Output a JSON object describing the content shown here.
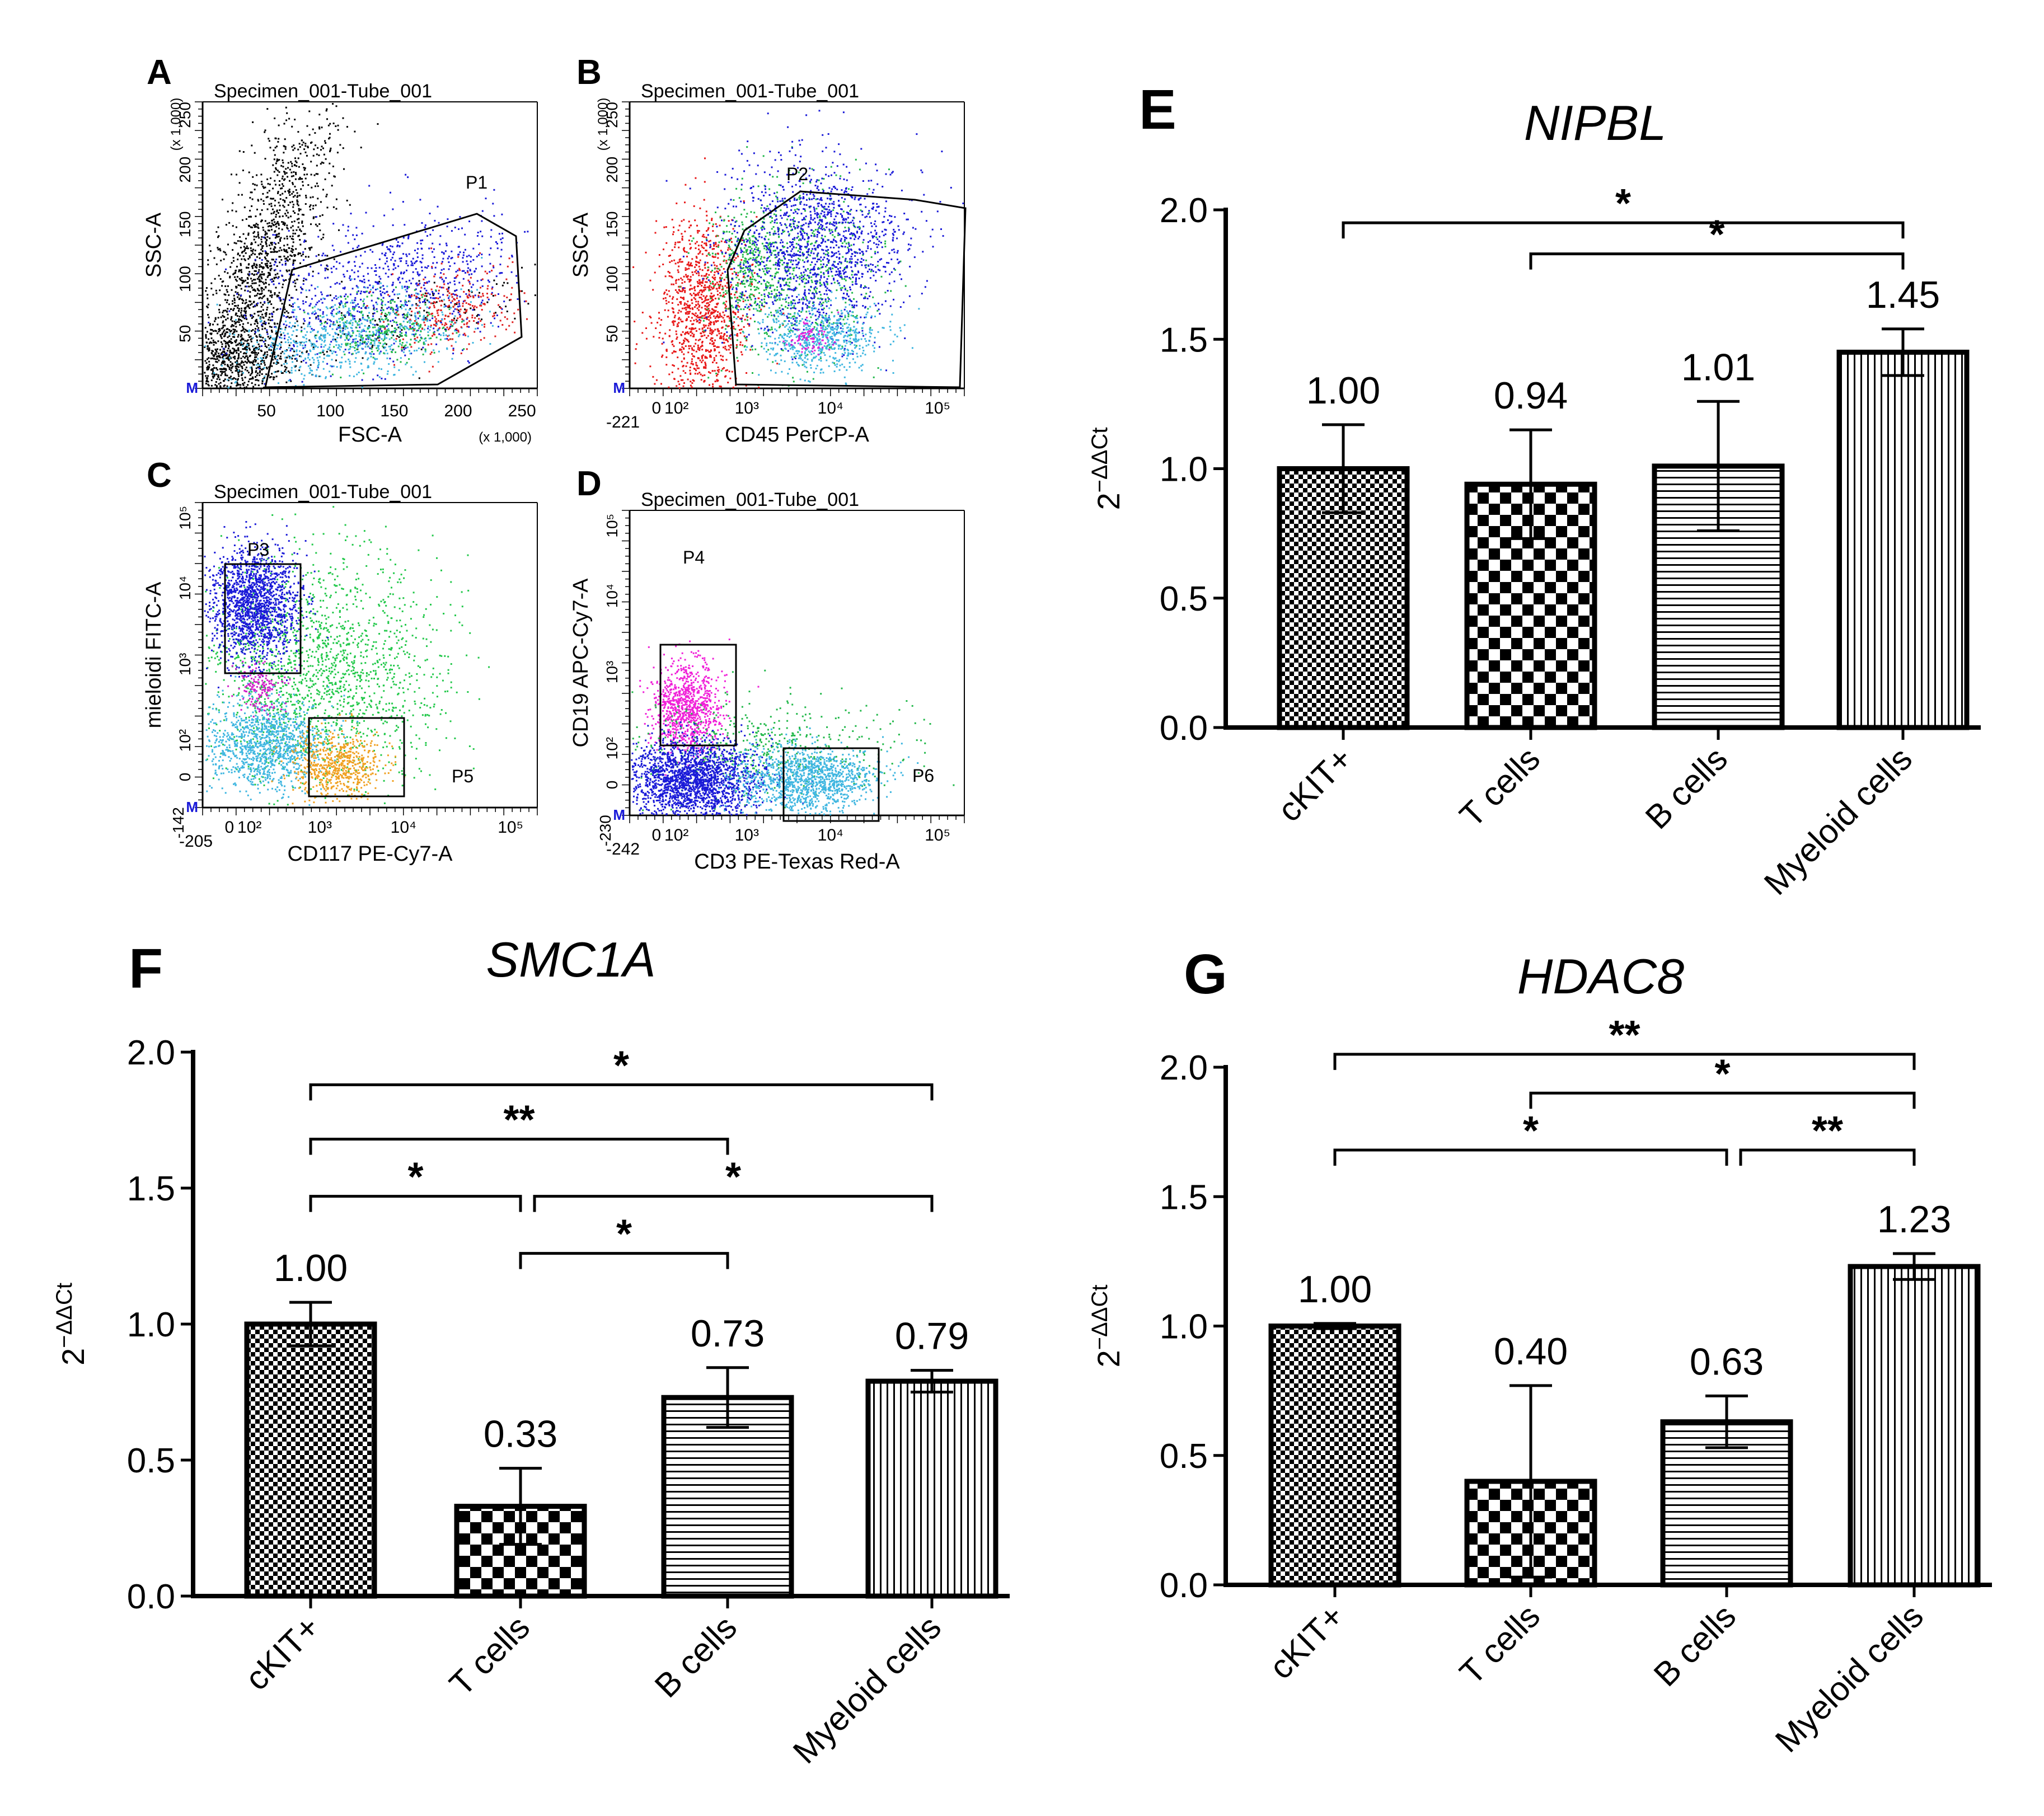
{
  "figure": {
    "panel_labels": [
      "A",
      "B",
      "C",
      "D",
      "E",
      "F",
      "G"
    ]
  },
  "chart_data": [
    {
      "panel": "A",
      "type": "scatter",
      "title": "Specimen_001-Tube_001",
      "xlabel": "FSC-A",
      "ylabel": "SSC-A",
      "x_multiplier": "(x 1,000)",
      "y_multiplier": "(x 1,000)",
      "xlim": [
        0,
        262
      ],
      "ylim": [
        0,
        262
      ],
      "x_ticks": [
        50,
        100,
        150,
        200,
        250
      ],
      "y_ticks": [
        50,
        100,
        150,
        200,
        250
      ],
      "gates": [
        {
          "name": "P1",
          "shape": "polygon"
        }
      ],
      "populations": [
        {
          "name": "debris",
          "color": "#000000"
        },
        {
          "name": "blue",
          "color": "#1a1ad8"
        },
        {
          "name": "cyan",
          "color": "#3fb6e0"
        },
        {
          "name": "green",
          "color": "#22b84a"
        },
        {
          "name": "red",
          "color": "#e02020"
        }
      ]
    },
    {
      "panel": "B",
      "type": "scatter",
      "title": "Specimen_001-Tube_001",
      "xlabel": "CD45 PerCP-A",
      "ylabel": "SSC-A",
      "y_multiplier": "(x 1,000)",
      "x_ticks_text": [
        "-221",
        "0",
        "10²",
        "10³",
        "10⁴",
        "10⁵"
      ],
      "y_ticks": [
        50,
        100,
        150,
        200,
        250
      ],
      "gates": [
        {
          "name": "P2",
          "shape": "polygon"
        }
      ],
      "populations": [
        {
          "name": "red",
          "color": "#e81818"
        },
        {
          "name": "green",
          "color": "#22b84a"
        },
        {
          "name": "blue",
          "color": "#1a1ad8"
        },
        {
          "name": "cyan",
          "color": "#3fb6e0"
        },
        {
          "name": "magenta",
          "color": "#e020d8"
        }
      ]
    },
    {
      "panel": "C",
      "type": "scatter",
      "title": "Specimen_001-Tube_001",
      "xlabel": "CD117 PE-Cy7-A",
      "ylabel": "mieloidi FITC-A",
      "x_ticks_text": [
        "-205",
        "0",
        "10²",
        "10³",
        "10⁴",
        "10⁵"
      ],
      "y_ticks_text": [
        "-142",
        "0",
        "10²",
        "10³",
        "10⁴",
        "10⁵"
      ],
      "gates": [
        {
          "name": "P3",
          "shape": "rect"
        },
        {
          "name": "P5",
          "shape": "rect"
        }
      ],
      "populations": [
        {
          "name": "blue",
          "color": "#1a1ad8"
        },
        {
          "name": "green",
          "color": "#22c84a"
        },
        {
          "name": "cyan",
          "color": "#3fb6e0"
        },
        {
          "name": "orange",
          "color": "#f0a020"
        },
        {
          "name": "magenta",
          "color": "#d020c8"
        }
      ]
    },
    {
      "panel": "D",
      "type": "scatter",
      "title": "Specimen_001-Tube_001",
      "xlabel": "CD3 PE-Texas Red-A",
      "ylabel": "CD19 APC-Cy7-A",
      "x_ticks_text": [
        "-242",
        "0",
        "10²",
        "10³",
        "10⁴",
        "10⁵"
      ],
      "y_ticks_text": [
        "-230",
        "0",
        "10²",
        "10³",
        "10⁴",
        "10⁵"
      ],
      "gates": [
        {
          "name": "P4",
          "shape": "rect"
        },
        {
          "name": "P6",
          "shape": "rect"
        }
      ],
      "populations": [
        {
          "name": "magenta",
          "color": "#f020d8"
        },
        {
          "name": "blue",
          "color": "#1a1ad8"
        },
        {
          "name": "cyan",
          "color": "#3fb6e0"
        },
        {
          "name": "green",
          "color": "#22b84a"
        }
      ]
    },
    {
      "panel": "E",
      "type": "bar",
      "title": "NIPBL",
      "ylabel": "2^-ΔΔCt",
      "ylabel_base": "2",
      "ylabel_exp": "−ΔΔCt",
      "ylim": [
        0,
        2.0
      ],
      "y_ticks": [
        "0.0",
        "0.5",
        "1.0",
        "1.5",
        "2.0"
      ],
      "categories": [
        "cKIT+",
        "T cells",
        "B cells",
        "Myeloid cells"
      ],
      "values": [
        1.0,
        0.94,
        1.01,
        1.45
      ],
      "errors": [
        0.17,
        0.21,
        0.25,
        0.09
      ],
      "labels": [
        "1.00",
        "0.94",
        "1.01",
        "1.45"
      ],
      "patterns": [
        "fine-check",
        "coarse-check",
        "horizontal",
        "vertical"
      ],
      "significance": [
        {
          "from": 0,
          "to": 3,
          "label": "*"
        },
        {
          "from": 1,
          "to": 3,
          "label": "*"
        }
      ]
    },
    {
      "panel": "F",
      "type": "bar",
      "title": "SMC1A",
      "ylabel": "2^-ΔΔCt",
      "ylabel_base": "2",
      "ylabel_exp": "−ΔΔCt",
      "ylim": [
        0,
        2.0
      ],
      "y_ticks": [
        "0.0",
        "0.5",
        "1.0",
        "1.5",
        "2.0"
      ],
      "categories": [
        "cKIT+",
        "T cells",
        "B cells",
        "Myeloid cells"
      ],
      "values": [
        1.0,
        0.33,
        0.73,
        0.79
      ],
      "errors": [
        0.08,
        0.14,
        0.11,
        0.04
      ],
      "labels": [
        "1.00",
        "0.33",
        "0.73",
        "0.79"
      ],
      "patterns": [
        "fine-check",
        "coarse-check",
        "horizontal",
        "vertical"
      ],
      "significance": [
        {
          "from": 0,
          "to": 3,
          "label": "*"
        },
        {
          "from": 0,
          "to": 2,
          "label": "**"
        },
        {
          "from": 0,
          "to": 1,
          "label": "*"
        },
        {
          "from": 1,
          "to": 3,
          "label": "*"
        },
        {
          "from": 1,
          "to": 2,
          "label": "*"
        }
      ]
    },
    {
      "panel": "G",
      "type": "bar",
      "title": "HDAC8",
      "ylabel": "2^-ΔΔCt",
      "ylabel_base": "2",
      "ylabel_exp": "−ΔΔCt",
      "ylim": [
        0,
        2.0
      ],
      "y_ticks": [
        "0.0",
        "0.5",
        "1.0",
        "1.5",
        "2.0"
      ],
      "categories": [
        "cKIT+",
        "T cells",
        "B cells",
        "Myeloid cells"
      ],
      "values": [
        1.0,
        0.4,
        0.63,
        1.23
      ],
      "errors": [
        0.01,
        0.37,
        0.1,
        0.05
      ],
      "labels": [
        "1.00",
        "0.40",
        "0.63",
        "1.23"
      ],
      "patterns": [
        "fine-check",
        "coarse-check",
        "horizontal",
        "vertical"
      ],
      "significance": [
        {
          "from": 0,
          "to": 3,
          "label": "**"
        },
        {
          "from": 1,
          "to": 3,
          "label": "*"
        },
        {
          "from": 0,
          "to": 2,
          "label": "*"
        },
        {
          "from": 2,
          "to": 3,
          "label": "**"
        }
      ]
    }
  ]
}
